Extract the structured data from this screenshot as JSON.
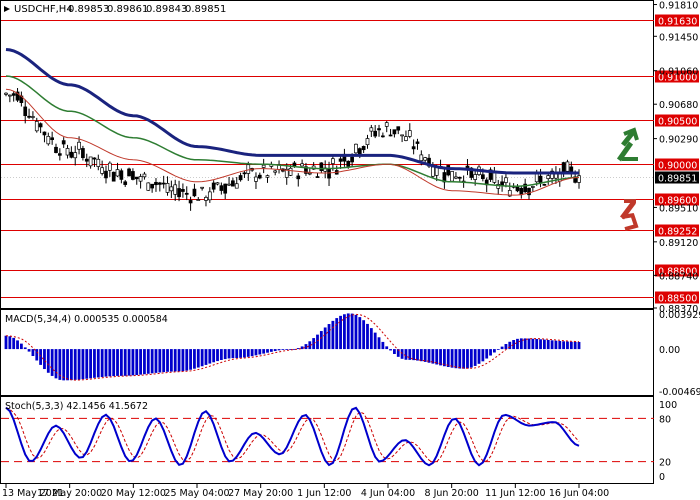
{
  "header": {
    "symbol": "USDCHF,H4",
    "ohlc": [
      "0.89853",
      "0.89861",
      "0.89843",
      "0.89851"
    ]
  },
  "colors": {
    "resistance_line": "#dd0000",
    "level_label_bg": "#dd0000",
    "ma_slow": "#1a237e",
    "ma_mid": "#2e7d32",
    "ma_fast": "#c0392b",
    "candle": "#000000",
    "current_price_bg": "#000000",
    "macd_hist": "#0000cc",
    "macd_signal": "#cc0000",
    "stoch_main": "#0000cc",
    "stoch_signal": "#cc0000",
    "arrow_up": "#2e7d32",
    "arrow_down": "#c0392b",
    "frame": "#000000"
  },
  "main_panel": {
    "y_ticks": [
      "0.91810",
      "0.91450",
      "0.91060",
      "0.90680",
      "0.90290",
      "0.89510",
      "0.89120",
      "0.88740",
      "0.88370"
    ],
    "levels": [
      {
        "label": "0.91630",
        "value": 0.9163
      },
      {
        "label": "0.91000",
        "value": 0.91
      },
      {
        "label": "0.90500",
        "value": 0.905
      },
      {
        "label": "0.90000",
        "value": 0.9
      },
      {
        "label": "0.89600",
        "value": 0.896
      },
      {
        "label": "0.89252",
        "value": 0.89252
      },
      {
        "label": "0.88800",
        "value": 0.888
      },
      {
        "label": "0.88500",
        "value": 0.885
      }
    ],
    "current_price": {
      "label": "0.89851",
      "value": 0.89851
    },
    "arrows": [
      {
        "name": "arrow-up-icon",
        "direction": "up"
      },
      {
        "name": "arrow-down-icon",
        "direction": "down"
      }
    ]
  },
  "macd_panel": {
    "title": "MACD(5,34,4) 0.000535 0.000584",
    "y_ticks": [
      "0.003929",
      "0.00",
      "-0.004692"
    ]
  },
  "stoch_panel": {
    "title": "Stoch(5,3,3) 42.1456 41.5672",
    "y_ticks": [
      "100",
      "80",
      "20",
      "0"
    ],
    "levels": [
      80,
      20
    ]
  },
  "x_axis": {
    "labels": [
      "13 May 2021",
      "17 May 20:00",
      "20 May 12:00",
      "25 May 04:00",
      "27 May 20:00",
      "1 Jun 12:00",
      "4 Jun 04:00",
      "8 Jun 20:00",
      "11 Jun 12:00",
      "16 Jun 04:00"
    ]
  },
  "chart_data": {
    "type": "line",
    "title": "USDCHF,H4",
    "x": [
      "13 May 2021",
      "17 May 20:00",
      "20 May 12:00",
      "25 May 04:00",
      "27 May 20:00",
      "1 Jun 12:00",
      "4 Jun 04:00",
      "8 Jun 20:00",
      "11 Jun 12:00",
      "16 Jun 04:00"
    ],
    "price_range": [
      0.8837,
      0.9185
    ],
    "series": [
      {
        "values": [
          0.908,
          0.9015,
          0.8985,
          0.8965,
          0.899,
          0.8995,
          0.904,
          0.899,
          0.8975,
          0.899
        ]
      },
      {
        "values": [
          0.913,
          0.909,
          0.9055,
          0.902,
          0.901,
          0.901,
          0.901,
          0.8995,
          0.899,
          0.899
        ]
      },
      {
        "values": [
          0.91,
          0.906,
          0.903,
          0.9005,
          0.9,
          0.8995,
          0.9,
          0.898,
          0.8975,
          0.8985
        ]
      },
      {
        "values": [
          0.9085,
          0.903,
          0.9005,
          0.898,
          0.8995,
          0.899,
          0.9,
          0.897,
          0.8965,
          0.8985
        ]
      }
    ],
    "levels": [
      0.9163,
      0.91,
      0.905,
      0.9,
      0.896,
      0.89252,
      0.888,
      0.885
    ],
    "macd": {
      "range": [
        -0.004692,
        0.003929
      ],
      "histogram": [
        0.0015,
        -0.0035,
        -0.003,
        -0.0025,
        -0.001,
        0.0,
        0.004,
        -0.0012,
        -0.0022,
        0.0012,
        0.0008
      ]
    },
    "stochastic": {
      "range": [
        0,
        100
      ],
      "main": [
        95,
        20,
        70,
        25,
        85,
        20,
        80,
        15,
        90,
        20,
        60,
        30,
        85,
        15,
        95,
        20,
        50,
        15,
        80,
        15,
        85,
        70,
        75,
        42
      ]
    }
  }
}
